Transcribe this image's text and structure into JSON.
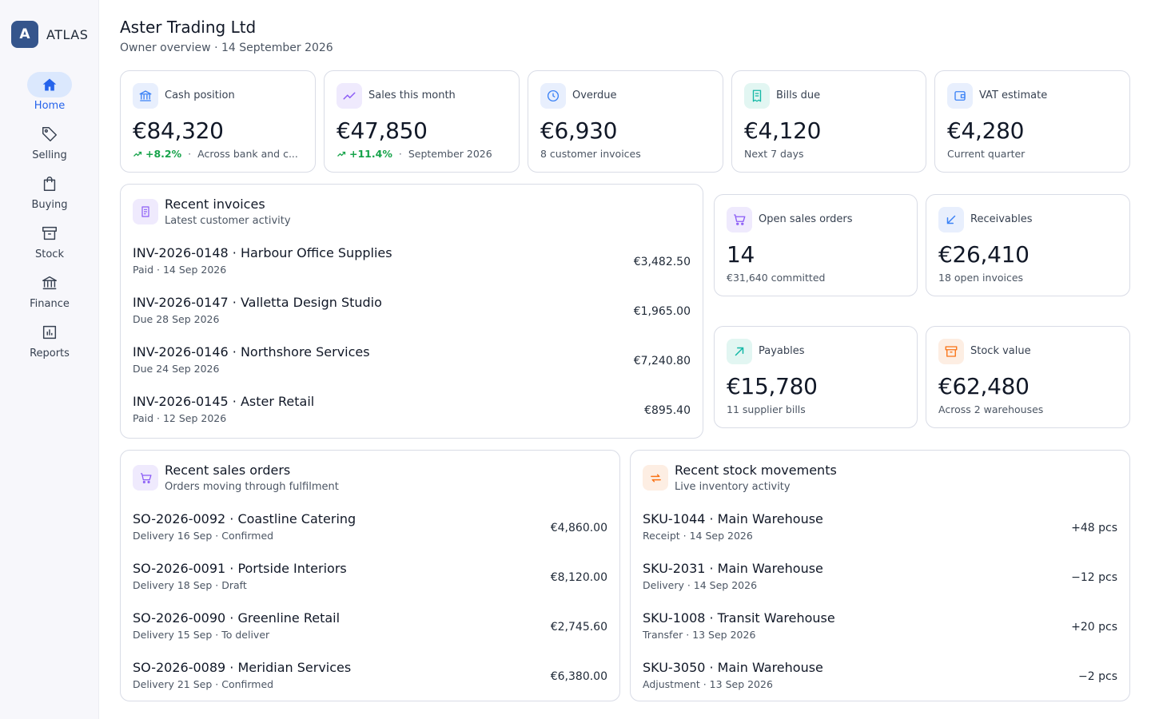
{
  "app": {
    "logo_letter": "A",
    "name": "ATLAS"
  },
  "nav": [
    {
      "label": "Home",
      "icon": "home-icon",
      "active": true
    },
    {
      "label": "Selling",
      "icon": "tag-icon"
    },
    {
      "label": "Buying",
      "icon": "shopping-bag-icon"
    },
    {
      "label": "Stock",
      "icon": "archive-box-icon"
    },
    {
      "label": "Finance",
      "icon": "bank-icon"
    },
    {
      "label": "Reports",
      "icon": "bar-chart-icon"
    }
  ],
  "header": {
    "title": "Aster Trading Ltd",
    "subtitle": "Owner overview · 14 September 2026"
  },
  "kpis": [
    {
      "label": "Cash position",
      "value": "€84,320",
      "trend": "+8.2%",
      "sub": "Across bank and c...",
      "icon": "bank-icon",
      "color": "#3b82f6"
    },
    {
      "label": "Sales this month",
      "value": "€47,850",
      "trend": "+11.4%",
      "sub": "September 2026",
      "icon": "trend-up-icon",
      "color": "#8b5cf6"
    },
    {
      "label": "Overdue",
      "value": "€6,930",
      "sub": "8 customer invoices",
      "icon": "clock-icon",
      "color": "#3b82f6"
    },
    {
      "label": "Bills due",
      "value": "€4,120",
      "sub": "Next 7 days",
      "icon": "receipt-icon",
      "color": "#14b8a6"
    },
    {
      "label": "VAT estimate",
      "value": "€4,280",
      "sub": "Current quarter",
      "icon": "wallet-icon",
      "color": "#3b82f6"
    }
  ],
  "recent_invoices": {
    "title": "Recent invoices",
    "subtitle": "Latest customer activity",
    "items": [
      {
        "title": "INV-2026-0148 · Harbour Office Supplies",
        "sub": "Paid · 14 Sep 2026",
        "amount": "€3,482.50"
      },
      {
        "title": "INV-2026-0147 · Valletta Design Studio",
        "sub": "Due 28 Sep 2026",
        "amount": "€1,965.00"
      },
      {
        "title": "INV-2026-0146 · Northshore Services",
        "sub": "Due 24 Sep 2026",
        "amount": "€7,240.80"
      },
      {
        "title": "INV-2026-0145 · Aster Retail",
        "sub": "Paid · 12 Sep 2026",
        "amount": "€895.40"
      }
    ]
  },
  "mini_cards": [
    {
      "label": "Open sales orders",
      "value": "14",
      "sub": "€31,640 committed",
      "icon": "cart-icon",
      "color": "#8b5cf6"
    },
    {
      "label": "Receivables",
      "value": "€26,410",
      "sub": "18 open invoices",
      "icon": "arrow-down-left-icon",
      "color": "#3b82f6"
    },
    {
      "label": "Payables",
      "value": "€15,780",
      "sub": "11 supplier bills",
      "icon": "arrow-up-right-icon",
      "color": "#14b8a6"
    },
    {
      "label": "Stock value",
      "value": "€62,480",
      "sub": "Across 2 warehouses",
      "icon": "archive-box-icon",
      "color": "#f97316"
    }
  ],
  "recent_sales_orders": {
    "title": "Recent sales orders",
    "subtitle": "Orders moving through fulfilment",
    "items": [
      {
        "title": "SO-2026-0092 · Coastline Catering",
        "sub": "Delivery 16 Sep · Confirmed",
        "amount": "€4,860.00"
      },
      {
        "title": "SO-2026-0091 · Portside Interiors",
        "sub": "Delivery 18 Sep · Draft",
        "amount": "€8,120.00"
      },
      {
        "title": "SO-2026-0090 · Greenline Retail",
        "sub": "Delivery 15 Sep · To deliver",
        "amount": "€2,745.60"
      },
      {
        "title": "SO-2026-0089 · Meridian Services",
        "sub": "Delivery 21 Sep · Confirmed",
        "amount": "€6,380.00"
      }
    ]
  },
  "recent_stock_movements": {
    "title": "Recent stock movements",
    "subtitle": "Live inventory activity",
    "items": [
      {
        "title": "SKU-1044 · Main Warehouse",
        "sub": "Receipt · 14 Sep 2026",
        "amount": "+48 pcs"
      },
      {
        "title": "SKU-2031 · Main Warehouse",
        "sub": "Delivery · 14 Sep 2026",
        "amount": "−12 pcs"
      },
      {
        "title": "SKU-1008 · Transit Warehouse",
        "sub": "Transfer · 13 Sep 2026",
        "amount": "+20 pcs"
      },
      {
        "title": "SKU-3050 · Main Warehouse",
        "sub": "Adjustment · 13 Sep 2026",
        "amount": "−2 pcs"
      }
    ]
  }
}
